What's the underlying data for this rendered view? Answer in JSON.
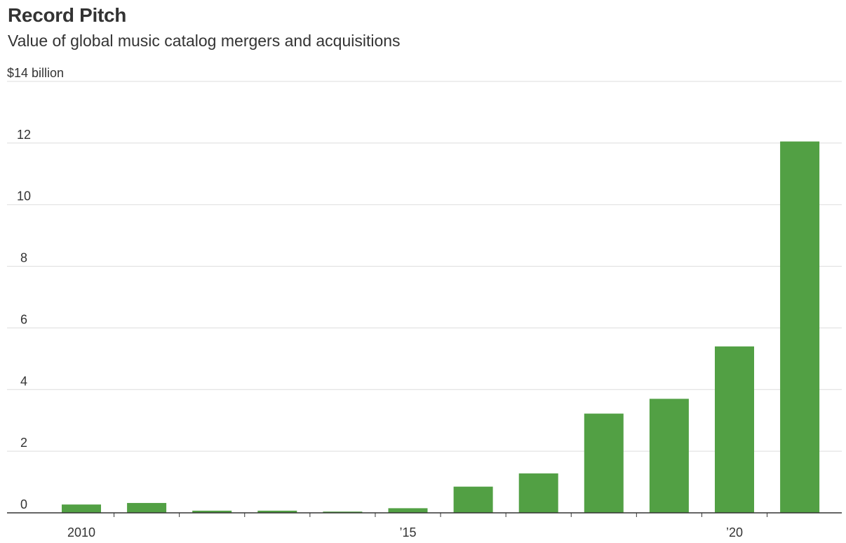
{
  "header": {
    "title": "Record Pitch",
    "subtitle": "Value of global music catalog mergers and acquisitions"
  },
  "colors": {
    "bar": "#52a044",
    "grid": "#dddddd",
    "axis": "#333333"
  },
  "chart_data": {
    "type": "bar",
    "title": "Record Pitch",
    "subtitle": "Value of global music catalog mergers and acquisitions",
    "xlabel": "",
    "ylabel": "",
    "unit_label": "$14 billion",
    "categories": [
      "2010",
      "2011",
      "2012",
      "2013",
      "2014",
      "2015",
      "2016",
      "2017",
      "2018",
      "2019",
      "2020",
      "2021"
    ],
    "values": [
      0.27,
      0.32,
      0.07,
      0.07,
      0.04,
      0.15,
      0.85,
      1.28,
      3.22,
      3.7,
      5.4,
      12.05
    ],
    "ylim": [
      0,
      14
    ],
    "yticks": [
      0,
      2,
      4,
      6,
      8,
      10,
      12
    ],
    "ytick_labels": [
      "0",
      "2",
      "4",
      "6",
      "8",
      "10",
      "12"
    ],
    "top_tick_label": "$14 billion",
    "xtick_labels": [
      {
        "category": "2010",
        "label": "2010"
      },
      {
        "category": "2015",
        "label": "’15"
      },
      {
        "category": "2020",
        "label": "’20"
      }
    ],
    "grid": true,
    "legend": "none"
  }
}
